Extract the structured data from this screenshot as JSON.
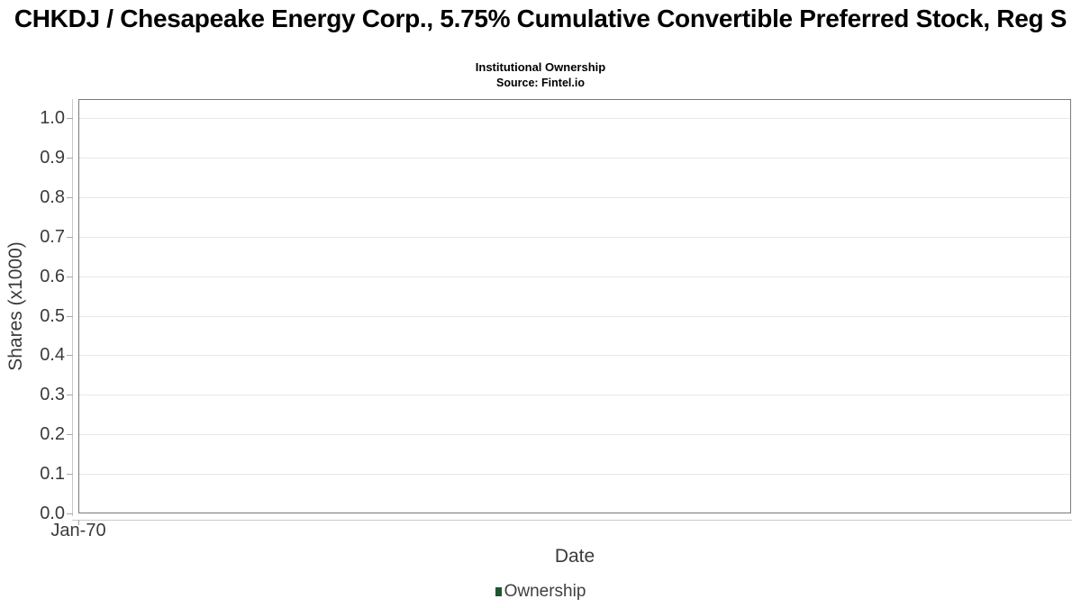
{
  "header": {
    "title": "CHKDJ / Chesapeake Energy Corp., 5.75% Cumulative Convertible Preferred Stock, Reg S",
    "subtitle": "Institutional Ownership",
    "source": "Source: Fintel.io"
  },
  "chart_data": {
    "type": "line",
    "title": "CHKDJ / Chesapeake Energy Corp., 5.75% Cumulative Convertible Preferred Stock, Reg S",
    "subtitle": "Institutional Ownership",
    "source": "Source: Fintel.io",
    "xlabel": "Date",
    "ylabel": "Shares (x1000)",
    "x_ticks": [
      "Jan-70"
    ],
    "y_ticks": [
      0.0,
      0.1,
      0.2,
      0.3,
      0.4,
      0.5,
      0.6,
      0.7,
      0.8,
      0.9,
      1.0
    ],
    "ylim": [
      0.0,
      1.05
    ],
    "grid": true,
    "legend_position": "bottom",
    "series": [
      {
        "name": "Ownership",
        "color": "#1e5631",
        "x": [],
        "values": []
      }
    ]
  },
  "legend": {
    "items": [
      {
        "label": "Ownership",
        "color": "#1e5631"
      }
    ]
  },
  "colors": {
    "series_green": "#1e5631",
    "plot_border": "#7a7a7a",
    "gridline": "#e7e7e7",
    "axis_line": "#c9c9c9",
    "tick_text": "#3a3a3a",
    "title_text": "#000000"
  }
}
